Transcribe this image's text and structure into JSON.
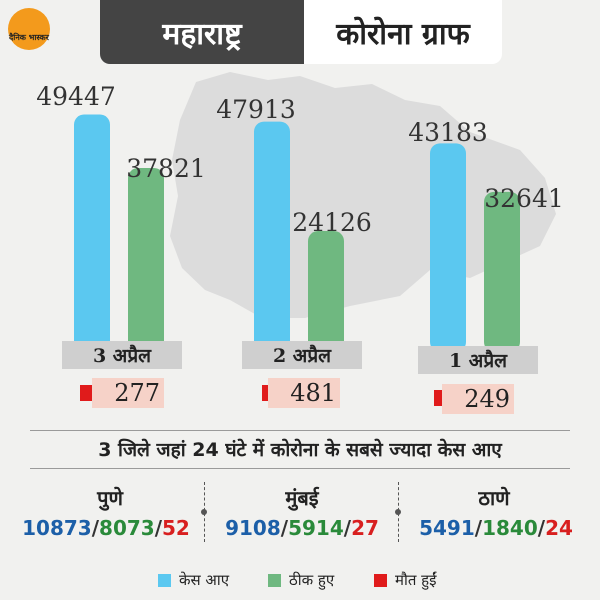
{
  "header": {
    "logo_text": "दैनिक भास्कर",
    "title_left": "महाराष्ट्र",
    "title_right": "कोरोना ग्राफ"
  },
  "colors": {
    "cases": "#5bc8f0",
    "recovered": "#6fb880",
    "deaths": "#e01b1b",
    "header_dark": "#444444",
    "map": "#dcdcdc"
  },
  "chart_data": {
    "type": "bar",
    "categories": [
      "3 अप्रैल",
      "2 अप्रैल",
      "1 अप्रैल"
    ],
    "series": [
      {
        "name": "केस आए",
        "values": [
          49447,
          47913,
          43183
        ]
      },
      {
        "name": "ठीक हुए",
        "values": [
          37821,
          24126,
          32641
        ]
      },
      {
        "name": "मौत हुईं",
        "values": [
          277,
          481,
          249
        ]
      }
    ],
    "value_labels": {
      "cases": [
        "49447",
        "47913",
        "43183"
      ],
      "recovered": [
        "37821",
        "24126",
        "32641"
      ],
      "deaths": [
        "277",
        "481",
        "249"
      ]
    },
    "title": "",
    "xlabel": "",
    "ylabel": "",
    "grid": false,
    "legend_position": "bottom"
  },
  "districts": {
    "title": "3 जिले जहां 24 घंटे में कोरोना के सबसे ज्यादा केस आए",
    "items": [
      {
        "name": "पुणे",
        "cases": "10873",
        "recovered": "8073",
        "deaths": "52"
      },
      {
        "name": "मुंबई",
        "cases": "9108",
        "recovered": "5914",
        "deaths": "27"
      },
      {
        "name": "ठाणे",
        "cases": "5491",
        "recovered": "1840",
        "deaths": "24"
      }
    ],
    "separator": "/"
  },
  "legend": [
    {
      "label": "केस आए",
      "color": "#5bc8f0"
    },
    {
      "label": "ठीक हुए",
      "color": "#6fb880"
    },
    {
      "label": "मौत हुईं",
      "color": "#e01b1b"
    }
  ]
}
